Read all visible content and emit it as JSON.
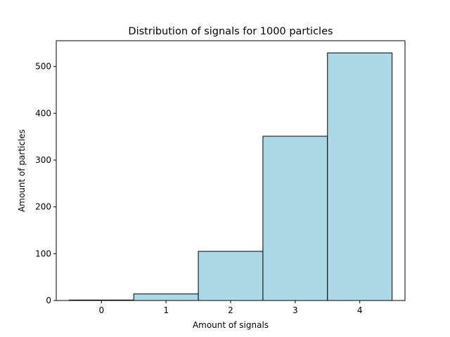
{
  "chart_data": {
    "type": "bar",
    "title": "Distribution of signals for 1000 particles",
    "xlabel": "Amount of signals",
    "ylabel": "Amount of particles",
    "categories": [
      "0",
      "1",
      "2",
      "3",
      "4"
    ],
    "x": [
      0,
      1,
      2,
      3,
      4
    ],
    "values": [
      1,
      14,
      105,
      351,
      529
    ],
    "xlim": [
      -0.7,
      4.7
    ],
    "ylim": [
      0,
      555
    ],
    "yticks": [
      0,
      100,
      200,
      300,
      400,
      500
    ],
    "grid": false,
    "legend": "none",
    "colors": {
      "bar_fill": "#add8e6",
      "bar_edge": "#000000"
    }
  }
}
